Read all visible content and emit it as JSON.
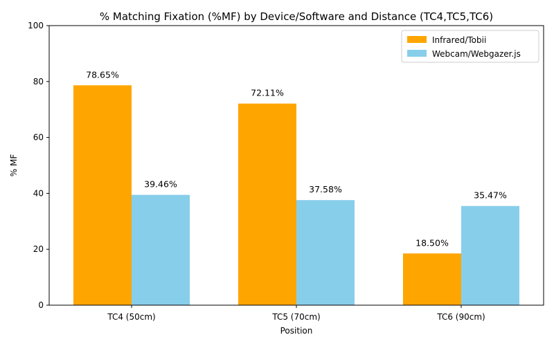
{
  "chart_data": {
    "type": "bar",
    "title": "% Matching Fixation (%MF) by Device/Software and Distance (TC4,TC5,TC6)",
    "xlabel": "Position",
    "ylabel": "% MF",
    "ylim": [
      0,
      100
    ],
    "yticks": [
      0,
      20,
      40,
      60,
      80,
      100
    ],
    "categories": [
      "TC4 (50cm)",
      "TC5 (70cm)",
      "TC6 (90cm)"
    ],
    "series": [
      {
        "name": "Infrared/Tobii",
        "color": "#FFA500",
        "values": [
          78.65,
          72.11,
          18.5
        ],
        "labels": [
          "78.65%",
          "72.11%",
          "18.50%"
        ]
      },
      {
        "name": "Webcam/Webgazer.js",
        "color": "#87CEEB",
        "values": [
          39.46,
          37.58,
          35.47
        ],
        "labels": [
          "39.46%",
          "37.58%",
          "35.47%"
        ]
      }
    ],
    "legend": "top-right",
    "grid": false
  }
}
